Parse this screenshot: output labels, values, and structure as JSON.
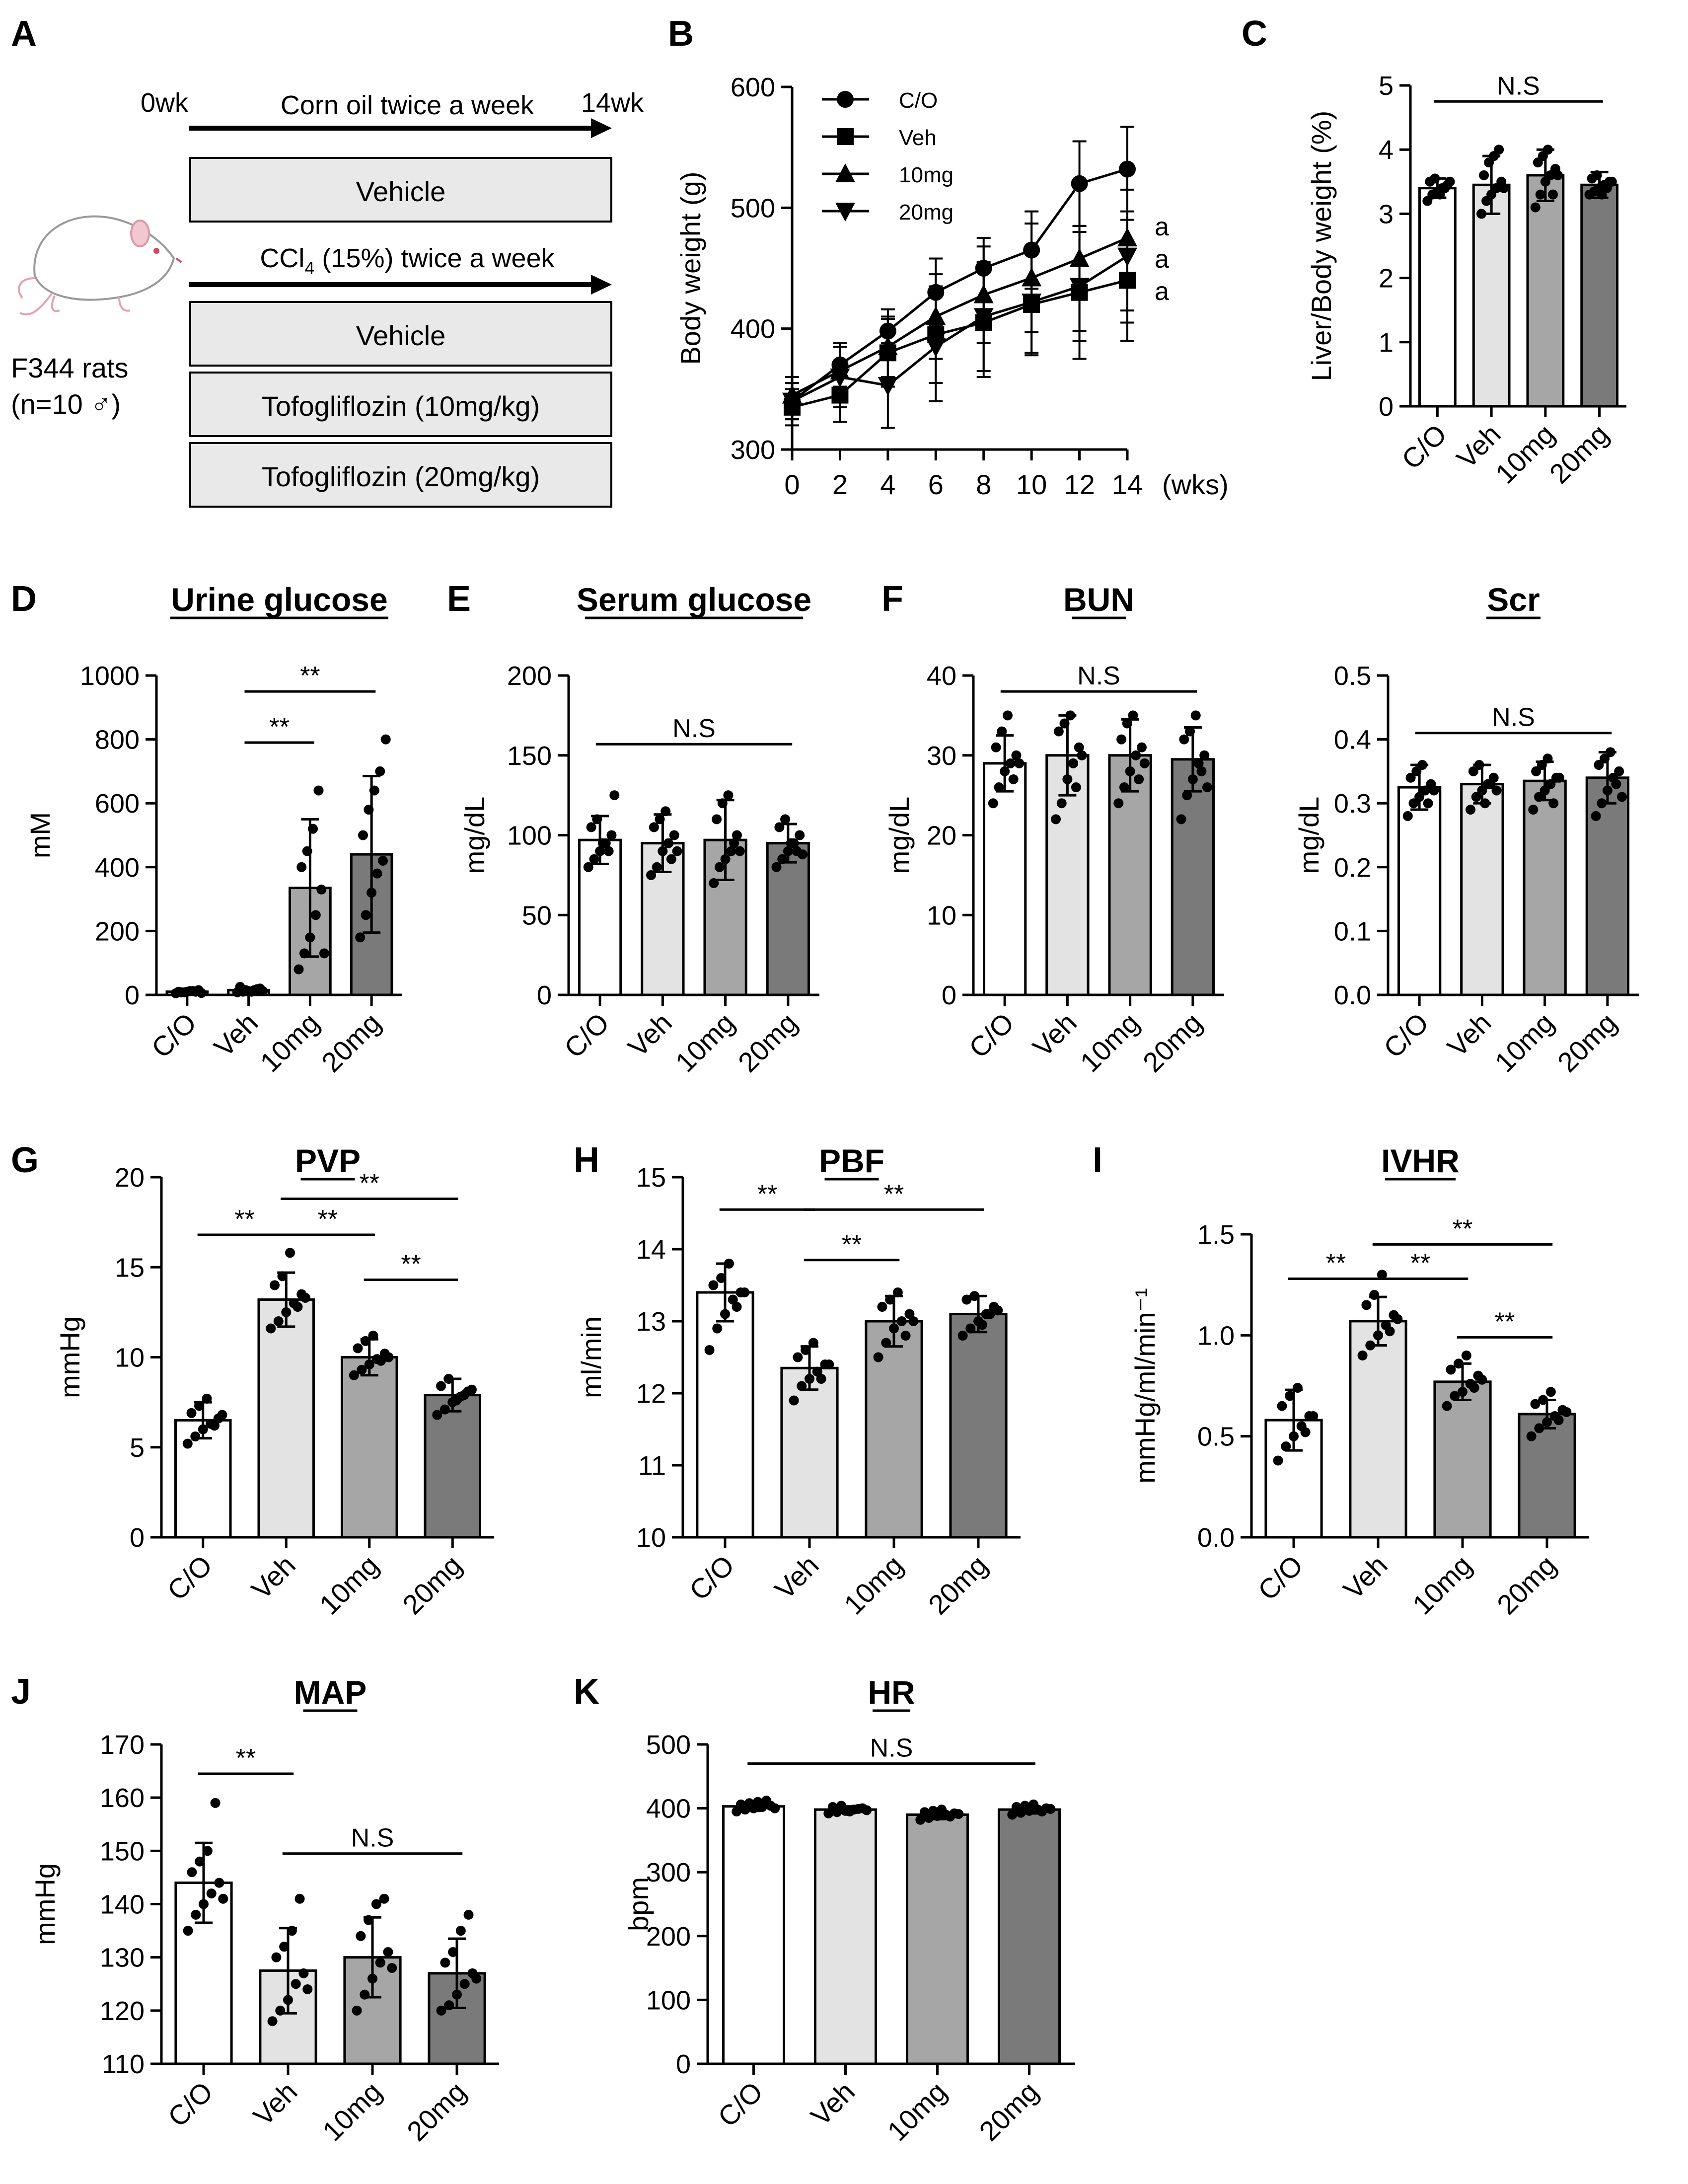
{
  "colors": {
    "c_o": "#ffffff",
    "veh": "#e3e3e3",
    "mg10": "#a6a6a6",
    "mg20": "#7a7a7a",
    "ink": "#000000"
  },
  "panel_a": {
    "letter": "A",
    "start_label": "0wk",
    "end_label": "14wk",
    "corn_oil": "Corn oil twice a week",
    "ccl4_prefix": "CCl",
    "ccl4_sub": "4",
    "ccl4_suffix": " (15%) twice a week",
    "boxes": [
      "Vehicle",
      "Vehicle",
      "Tofogliflozin (10mg/kg)",
      "Tofogliflozin (20mg/kg)"
    ],
    "rats_line1": "F344 rats",
    "rats_line2": "(n=10 ♂)",
    "rat_icon": "rat-icon"
  },
  "chart_data": [
    {
      "id": "B",
      "letter": "B",
      "type": "line",
      "title": "",
      "xlabel": "(wks)",
      "ylabel": "Body weight (g)",
      "x": [
        0,
        2,
        4,
        6,
        8,
        10,
        12,
        14
      ],
      "xlim": [
        0,
        14
      ],
      "ylim": [
        300,
        600
      ],
      "yticks": [
        300,
        400,
        500,
        600
      ],
      "legend_position": "top-left",
      "series": [
        {
          "name": "C/O",
          "marker": "circle",
          "values": [
            340,
            370,
            398,
            430,
            450,
            465,
            520,
            532
          ],
          "errors": [
            15,
            18,
            18,
            28,
            25,
            32,
            35,
            35
          ]
        },
        {
          "name": "Veh",
          "marker": "square",
          "values": [
            335,
            345,
            380,
            395,
            405,
            420,
            430,
            440
          ],
          "errors": [
            15,
            22,
            28,
            40,
            45,
            42,
            55,
            50
          ]
        },
        {
          "name": "10mg",
          "marker": "triangle-up",
          "values": [
            345,
            365,
            385,
            410,
            428,
            442,
            458,
            475
          ],
          "errors": [
            15,
            20,
            25,
            35,
            40,
            45,
            60,
            60
          ]
        },
        {
          "name": "20mg",
          "marker": "triangle-down",
          "values": [
            340,
            360,
            353,
            385,
            410,
            422,
            435,
            460
          ],
          "errors": [
            15,
            25,
            35,
            45,
            45,
            42,
            45,
            55
          ]
        }
      ],
      "end_annotations": [
        "a",
        "a",
        "a"
      ]
    },
    {
      "id": "C",
      "letter": "C",
      "type": "bar",
      "title": "",
      "xlabel": "",
      "ylabel": "Liver/Body weight (%)",
      "categories": [
        "C/O",
        "Veh",
        "10mg",
        "20mg"
      ],
      "values": [
        3.4,
        3.45,
        3.6,
        3.45
      ],
      "errors": [
        0.15,
        0.45,
        0.4,
        0.2
      ],
      "points": [
        [
          3.2,
          3.3,
          3.35,
          3.4,
          3.45,
          3.5,
          3.55,
          3.3,
          3.4,
          3.5
        ],
        [
          3.0,
          3.2,
          3.3,
          3.4,
          3.5,
          3.6,
          3.8,
          3.9,
          4.0,
          3.4
        ],
        [
          3.1,
          3.3,
          3.5,
          3.6,
          3.7,
          3.8,
          3.9,
          4.0,
          3.3,
          3.6
        ],
        [
          3.3,
          3.35,
          3.4,
          3.45,
          3.5,
          3.55,
          3.6,
          3.3,
          3.4,
          3.5
        ]
      ],
      "ylim": [
        0,
        5
      ],
      "yticks": [
        0,
        1,
        2,
        3,
        4,
        5
      ],
      "annotations": [
        {
          "label": "N.S",
          "from": 0,
          "to": 3,
          "y": 4.75
        }
      ]
    },
    {
      "id": "D",
      "letter": "D",
      "type": "bar",
      "title": "Urine glucose",
      "xlabel": "",
      "ylabel": "mM",
      "categories": [
        "C/O",
        "Veh",
        "10mg",
        "20mg"
      ],
      "values": [
        10,
        15,
        335,
        440
      ],
      "errors": [
        5,
        5,
        215,
        245
      ],
      "points": [
        [
          5,
          8,
          10,
          12,
          15,
          10,
          8,
          12,
          10,
          6
        ],
        [
          8,
          10,
          12,
          15,
          20,
          25,
          15,
          10,
          18,
          12
        ],
        [
          80,
          130,
          180,
          250,
          330,
          400,
          450,
          520,
          640,
          130
        ],
        [
          180,
          250,
          320,
          380,
          420,
          500,
          580,
          640,
          700,
          800
        ]
      ],
      "ylim": [
        0,
        1000
      ],
      "yticks": [
        0,
        200,
        400,
        600,
        800,
        1000
      ],
      "annotations": [
        {
          "label": "**",
          "from": 1,
          "to": 2,
          "y": 790
        },
        {
          "label": "**",
          "from": 1,
          "to": 3,
          "y": 950
        }
      ]
    },
    {
      "id": "E",
      "letter": "E",
      "type": "bar",
      "title": "Serum glucose",
      "xlabel": "",
      "ylabel": "mg/dL",
      "categories": [
        "C/O",
        "Veh",
        "10mg",
        "20mg"
      ],
      "values": [
        97,
        95,
        97,
        95
      ],
      "errors": [
        15,
        18,
        25,
        12
      ],
      "points": [
        [
          80,
          85,
          90,
          95,
          100,
          105,
          110,
          95,
          90,
          125
        ],
        [
          75,
          80,
          90,
          95,
          100,
          105,
          110,
          115,
          85,
          90
        ],
        [
          70,
          80,
          85,
          90,
          100,
          110,
          120,
          125,
          95,
          90
        ],
        [
          80,
          85,
          90,
          95,
          100,
          105,
          110,
          95,
          90,
          88
        ]
      ],
      "ylim": [
        0,
        200
      ],
      "yticks": [
        0,
        50,
        100,
        150,
        200
      ],
      "annotations": [
        {
          "label": "N.S",
          "from": 0,
          "to": 3,
          "y": 157
        }
      ]
    },
    {
      "id": "F1",
      "letter": "F",
      "type": "bar",
      "title": "BUN",
      "xlabel": "",
      "ylabel": "mg/dL",
      "categories": [
        "C/O",
        "Veh",
        "10mg",
        "20mg"
      ],
      "values": [
        29,
        30,
        30,
        29.5
      ],
      "errors": [
        3.5,
        5,
        4.5,
        4
      ],
      "points": [
        [
          24,
          26,
          28,
          29,
          30,
          31,
          33,
          35,
          27,
          29
        ],
        [
          22,
          24,
          27,
          29,
          31,
          33,
          34,
          35,
          26,
          30
        ],
        [
          24,
          26,
          28,
          30,
          31,
          32,
          34,
          35,
          27,
          29
        ],
        [
          22,
          25,
          27,
          29,
          30,
          32,
          33,
          35,
          28,
          26
        ]
      ],
      "ylim": [
        0,
        40
      ],
      "yticks": [
        0,
        10,
        20,
        30,
        40
      ],
      "annotations": [
        {
          "label": "N.S",
          "from": 0,
          "to": 3,
          "y": 38
        }
      ]
    },
    {
      "id": "F2",
      "letter": "",
      "type": "bar",
      "title": "Scr",
      "xlabel": "",
      "ylabel": "mg/dL",
      "categories": [
        "C/O",
        "Veh",
        "10mg",
        "20mg"
      ],
      "values": [
        0.325,
        0.33,
        0.335,
        0.34
      ],
      "errors": [
        0.035,
        0.03,
        0.03,
        0.04
      ],
      "points": [
        [
          0.28,
          0.3,
          0.31,
          0.32,
          0.33,
          0.34,
          0.35,
          0.36,
          0.3,
          0.32
        ],
        [
          0.29,
          0.31,
          0.32,
          0.33,
          0.34,
          0.35,
          0.36,
          0.3,
          0.33,
          0.32
        ],
        [
          0.29,
          0.31,
          0.32,
          0.33,
          0.34,
          0.35,
          0.36,
          0.37,
          0.3,
          0.34
        ],
        [
          0.28,
          0.3,
          0.32,
          0.34,
          0.35,
          0.36,
          0.37,
          0.38,
          0.33,
          0.31
        ]
      ],
      "ylim": [
        0,
        0.5
      ],
      "yticks": [
        0.0,
        0.1,
        0.2,
        0.3,
        0.4,
        0.5
      ],
      "ydecimals": 1,
      "annotations": [
        {
          "label": "N.S",
          "from": 0,
          "to": 3,
          "y": 0.41
        }
      ]
    },
    {
      "id": "G",
      "letter": "G",
      "type": "bar",
      "title": "PVP",
      "xlabel": "",
      "ylabel": "mmHg",
      "categories": [
        "C/O",
        "Veh",
        "10mg",
        "20mg"
      ],
      "values": [
        6.5,
        13.2,
        10.0,
        7.9
      ],
      "errors": [
        1.0,
        1.5,
        1.0,
        0.9
      ],
      "points": [
        [
          5.2,
          5.6,
          6.0,
          6.3,
          6.6,
          6.9,
          7.3,
          7.7,
          6.2,
          6.8
        ],
        [
          11.6,
          12.0,
          12.5,
          13.0,
          13.5,
          14.0,
          14.5,
          15.8,
          12.8,
          13.3
        ],
        [
          9.0,
          9.3,
          9.6,
          9.9,
          10.2,
          10.5,
          10.9,
          11.2,
          9.8,
          10.0
        ],
        [
          6.8,
          7.1,
          7.5,
          7.8,
          8.1,
          8.4,
          8.8,
          7.6,
          7.9,
          8.2
        ]
      ],
      "ylim": [
        0,
        20
      ],
      "yticks": [
        0,
        5,
        10,
        15,
        20
      ],
      "annotations": [
        {
          "label": "**",
          "from": 0,
          "to": 1,
          "y": 16.8
        },
        {
          "label": "**",
          "from": 1,
          "to": 2,
          "y": 16.8
        },
        {
          "label": "**",
          "from": 1,
          "to": 3,
          "y": 18.8
        },
        {
          "label": "**",
          "from": 2,
          "to": 3,
          "y": 14.3
        }
      ]
    },
    {
      "id": "H",
      "letter": "H",
      "type": "bar",
      "title": "PBF",
      "xlabel": "",
      "ylabel": "ml/min",
      "categories": [
        "C/O",
        "Veh",
        "10mg",
        "20mg"
      ],
      "values": [
        13.4,
        12.35,
        13.0,
        13.1
      ],
      "errors": [
        0.4,
        0.3,
        0.35,
        0.25
      ],
      "points": [
        [
          12.6,
          12.9,
          13.1,
          13.3,
          13.4,
          13.5,
          13.6,
          13.8,
          13.2,
          13.4
        ],
        [
          11.9,
          12.1,
          12.2,
          12.3,
          12.4,
          12.5,
          12.6,
          12.7,
          12.2,
          12.4
        ],
        [
          12.5,
          12.7,
          12.9,
          13.0,
          13.1,
          13.2,
          13.3,
          13.4,
          12.8,
          13.0
        ],
        [
          12.8,
          12.9,
          13.0,
          13.1,
          13.2,
          13.3,
          13.35,
          12.95,
          13.1,
          13.15
        ]
      ],
      "ylim": [
        10,
        15
      ],
      "yticks": [
        10,
        11,
        12,
        13,
        14,
        15
      ],
      "annotations": [
        {
          "label": "**",
          "from": 0,
          "to": 1,
          "y": 14.55
        },
        {
          "label": "**",
          "from": 1,
          "to": 2,
          "y": 13.85
        },
        {
          "label": "**",
          "from": 1,
          "to": 3,
          "y": 14.55
        }
      ]
    },
    {
      "id": "I",
      "letter": "I",
      "type": "bar",
      "title": "IVHR",
      "xlabel": "",
      "ylabel": "mmHg/ml/min⁻¹",
      "categories": [
        "C/O",
        "Veh",
        "10mg",
        "20mg"
      ],
      "values": [
        0.58,
        1.07,
        0.77,
        0.61
      ],
      "errors": [
        0.15,
        0.12,
        0.09,
        0.07
      ],
      "points": [
        [
          0.38,
          0.45,
          0.5,
          0.55,
          0.6,
          0.65,
          0.7,
          0.74,
          0.52,
          0.6
        ],
        [
          0.9,
          0.95,
          1.0,
          1.05,
          1.1,
          1.15,
          1.2,
          1.3,
          1.02,
          1.08
        ],
        [
          0.65,
          0.7,
          0.72,
          0.76,
          0.8,
          0.83,
          0.86,
          0.9,
          0.74,
          0.78
        ],
        [
          0.5,
          0.54,
          0.57,
          0.6,
          0.63,
          0.66,
          0.68,
          0.72,
          0.58,
          0.62
        ]
      ],
      "ylim": [
        0,
        1.5
      ],
      "yticks": [
        0.0,
        0.5,
        1.0,
        1.5
      ],
      "ydecimals": 1,
      "annotations": [
        {
          "label": "**",
          "from": 0,
          "to": 1,
          "y": 1.28
        },
        {
          "label": "**",
          "from": 1,
          "to": 2,
          "y": 1.28
        },
        {
          "label": "**",
          "from": 1,
          "to": 3,
          "y": 1.45
        },
        {
          "label": "**",
          "from": 2,
          "to": 3,
          "y": 0.99
        }
      ]
    },
    {
      "id": "J",
      "letter": "J",
      "type": "bar",
      "title": "MAP",
      "xlabel": "",
      "ylabel": "mmHg",
      "categories": [
        "C/O",
        "Veh",
        "10mg",
        "20mg"
      ],
      "values": [
        144,
        127.5,
        130,
        127
      ],
      "errors": [
        7.5,
        8,
        7.5,
        6.5
      ],
      "points": [
        [
          135,
          138,
          140,
          142,
          144,
          146,
          148,
          150,
          159,
          141
        ],
        [
          118,
          120,
          122,
          125,
          127,
          130,
          132,
          135,
          141,
          124
        ],
        [
          120,
          123,
          126,
          129,
          131,
          134,
          137,
          140,
          141,
          128
        ],
        [
          120,
          121,
          123,
          125,
          127,
          129,
          131,
          135,
          138,
          126
        ]
      ],
      "ylim": [
        110,
        170
      ],
      "yticks": [
        110,
        120,
        130,
        140,
        150,
        160,
        170
      ],
      "annotations": [
        {
          "label": "**",
          "from": 0,
          "to": 1,
          "y": 164.5
        },
        {
          "label": "N.S",
          "from": 1,
          "to": 3,
          "y": 149.5
        }
      ]
    },
    {
      "id": "K",
      "letter": "K",
      "type": "bar",
      "title": "HR",
      "xlabel": "",
      "ylabel": "bpm",
      "categories": [
        "C/O",
        "Veh",
        "10mg",
        "20mg"
      ],
      "values": [
        403,
        398,
        390,
        398
      ],
      "errors": [
        7,
        5,
        7,
        6
      ],
      "points": [
        [
          395,
          398,
          400,
          402,
          404,
          406,
          408,
          410,
          412,
          400
        ],
        [
          392,
          394,
          396,
          398,
          400,
          402,
          404,
          395,
          399,
          397
        ],
        [
          382,
          385,
          388,
          390,
          392,
          394,
          396,
          398,
          387,
          391
        ],
        [
          390,
          393,
          396,
          398,
          400,
          402,
          404,
          406,
          395,
          399
        ]
      ],
      "ylim": [
        0,
        500
      ],
      "yticks": [
        0,
        100,
        200,
        300,
        400,
        500
      ],
      "annotations": [
        {
          "label": "N.S",
          "from": 0,
          "to": 3,
          "y": 470
        }
      ]
    }
  ]
}
